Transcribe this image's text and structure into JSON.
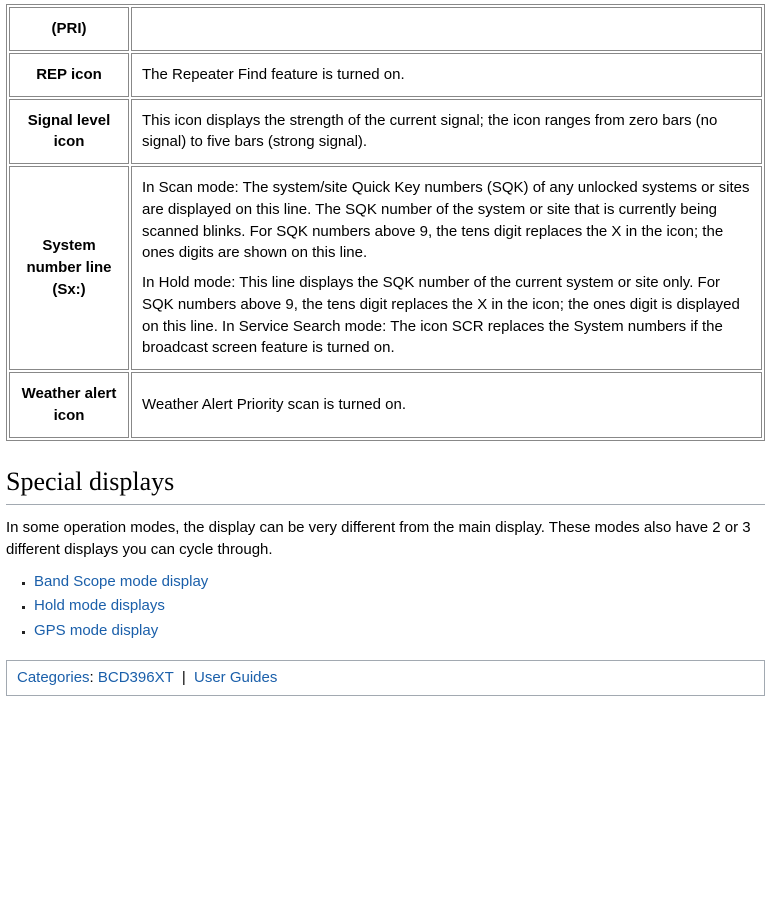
{
  "table": {
    "rows": [
      {
        "label": "(PRI)",
        "desc": [
          ""
        ]
      },
      {
        "label": "REP icon",
        "desc": [
          "The Repeater Find feature is turned on."
        ]
      },
      {
        "label": "Signal level icon",
        "desc": [
          "This icon displays the strength of the current signal; the icon ranges from zero bars (no signal) to five bars (strong signal)."
        ]
      },
      {
        "label": "System number line (Sx:)",
        "desc": [
          "In Scan mode: The system/site Quick Key numbers (SQK) of any unlocked systems or sites are displayed on this line. The SQK number of the system or site that is currently being scanned blinks. For SQK numbers above 9, the tens digit replaces the X in the icon; the ones digits are shown on this line.",
          "In Hold mode: This line displays the SQK number of the current system or site only. For SQK numbers above 9, the tens digit replaces the X in the icon; the ones digit is displayed on this line. In Service Search mode: The icon SCR replaces the System numbers if the broadcast screen feature is turned on."
        ]
      },
      {
        "label": "Weather alert icon",
        "desc": [
          "Weather Alert Priority scan is turned on."
        ]
      }
    ]
  },
  "section": {
    "heading": "Special displays",
    "intro": "In some operation modes, the display can be very different from the main display. These modes also have 2 or 3 different displays you can cycle through.",
    "links": [
      "Band Scope mode display",
      "Hold mode displays",
      "GPS mode display"
    ]
  },
  "categories": {
    "label": "Categories",
    "items": [
      "BCD396XT",
      "User Guides"
    ],
    "separator": " | ",
    "colon": ": "
  }
}
